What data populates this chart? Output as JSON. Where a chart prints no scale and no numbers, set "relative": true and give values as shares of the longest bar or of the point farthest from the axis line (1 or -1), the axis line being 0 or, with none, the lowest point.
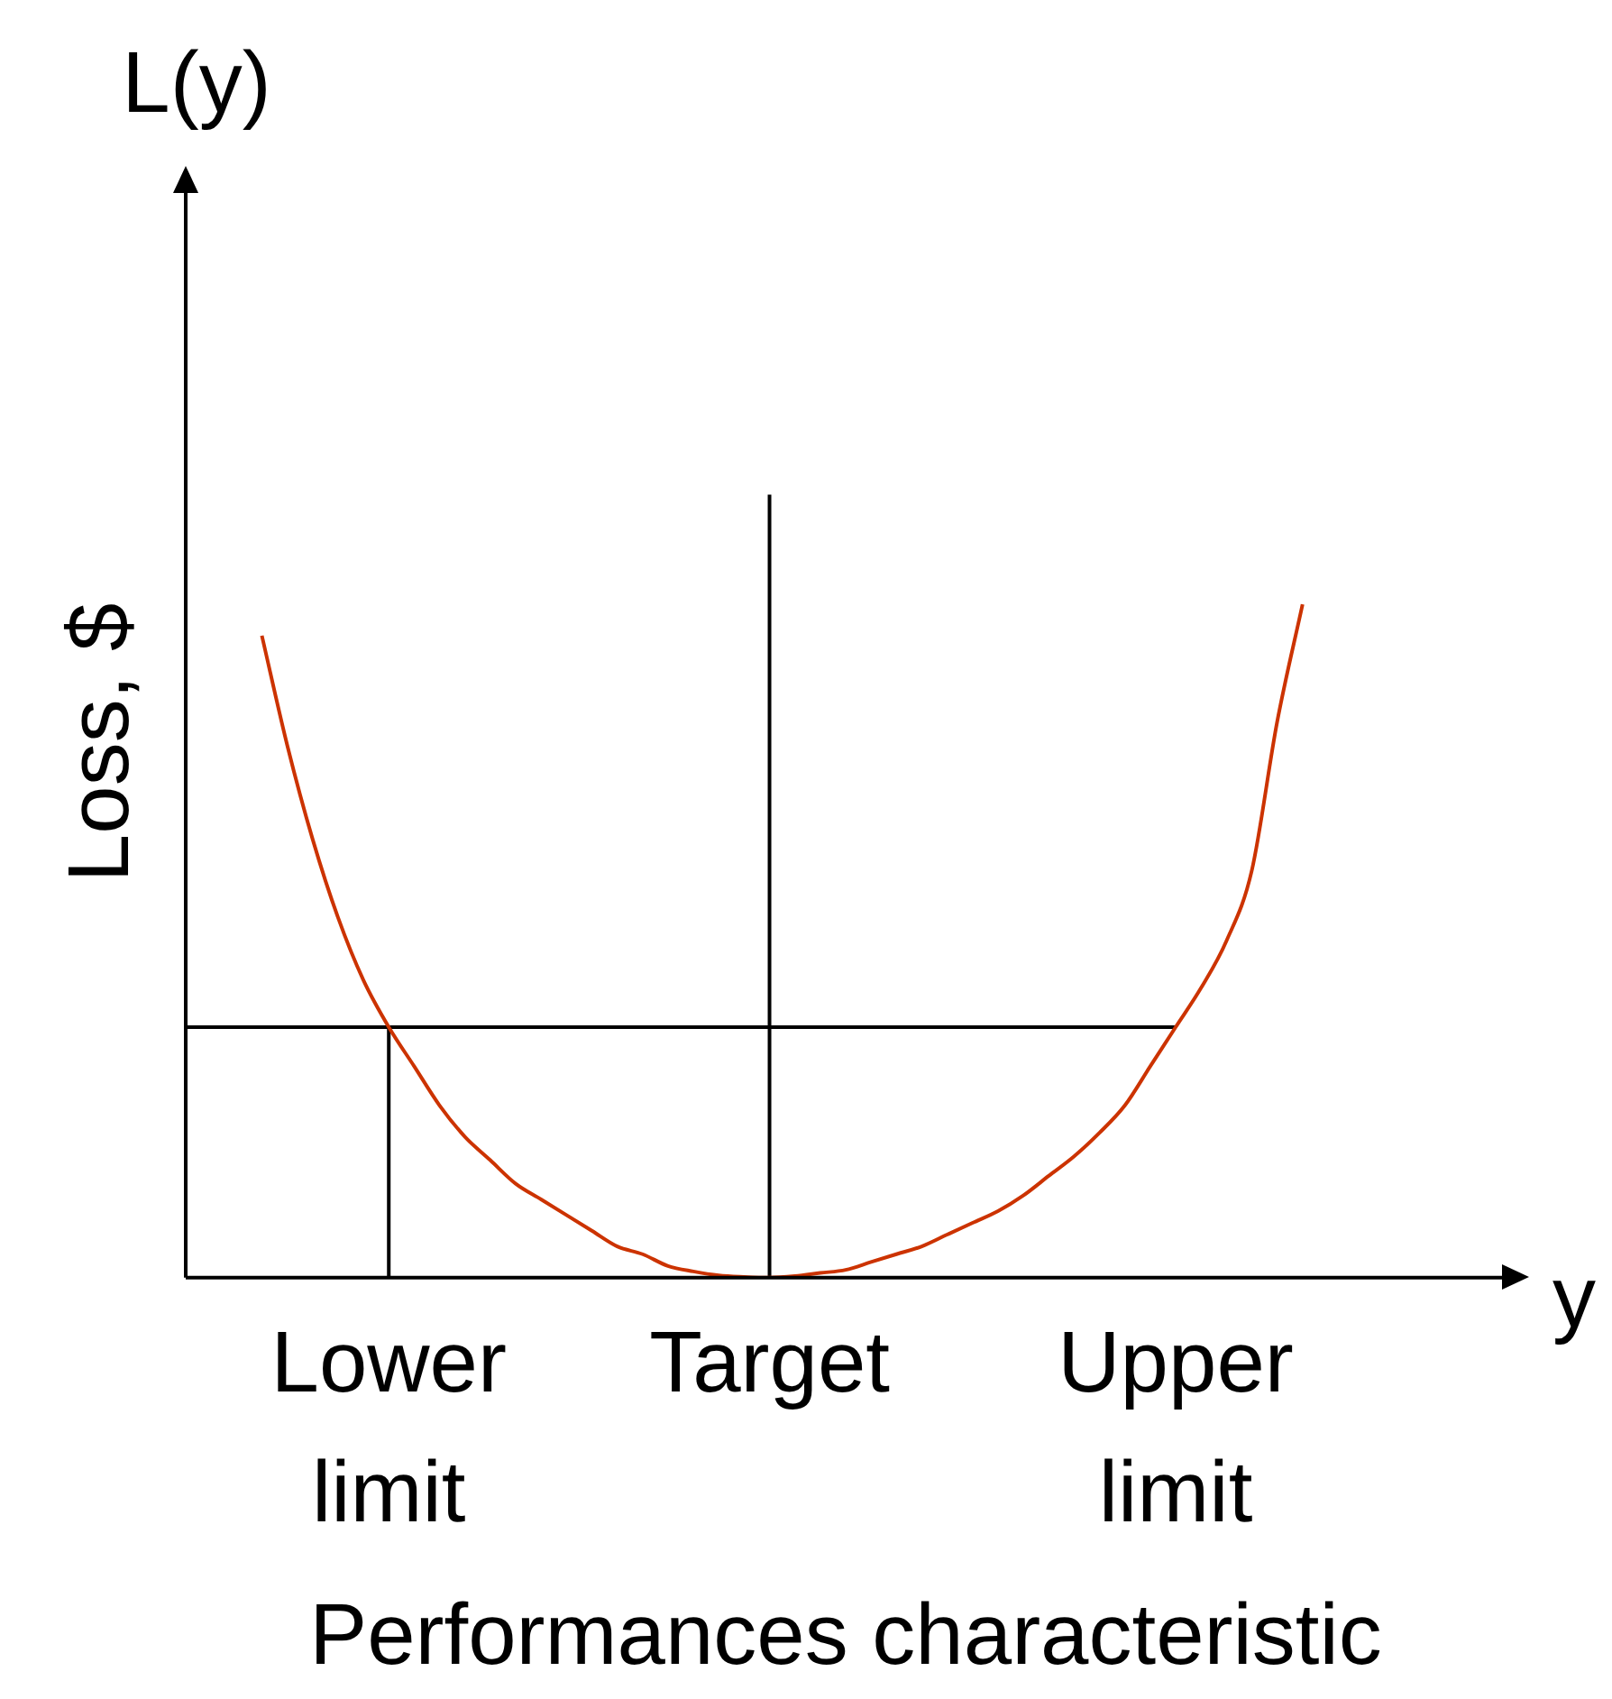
{
  "chart_data": {
    "type": "line",
    "title": "L(y)",
    "xlabel": "Performances characteristic",
    "ylabel": "Loss, $",
    "relative": true,
    "categories": [
      null,
      null,
      null,
      null,
      null,
      null,
      null,
      null,
      "Lower limit",
      null,
      null,
      null,
      null,
      null,
      null,
      null,
      null,
      null,
      null,
      null,
      null,
      null,
      null,
      "Target",
      null,
      null,
      null,
      null,
      null,
      null,
      null,
      null,
      null,
      null,
      null,
      null,
      null,
      null,
      null,
      "Upper limit",
      null,
      null,
      null,
      null,
      null,
      null,
      null,
      null,
      null,
      null,
      null,
      null,
      null
    ],
    "grid": false,
    "legend": false,
    "marker": "none",
    "line_style": "solid",
    "annotations": [
      "y"
    ],
    "series": [
      {
        "color": "#cc3300",
        "values": [
          null,
          null,
          null,
          0.82,
          0.68,
          0.56,
          0.46,
          0.38,
          0.32,
          0.27,
          0.22,
          0.18,
          0.15,
          0.12,
          0.1,
          0.08,
          0.06,
          0.04,
          0.03,
          0.015,
          0.008,
          0.003,
          0.001,
          0,
          0.002,
          0.006,
          0.01,
          0.02,
          0.03,
          0.04,
          0.055,
          0.07,
          0.085,
          0.105,
          0.13,
          0.155,
          0.185,
          0.22,
          0.27,
          0.32,
          0.37,
          0.43,
          0.52,
          0.71,
          0.86,
          null,
          null,
          null,
          null,
          null,
          null,
          null,
          null
        ]
      },
      {
        "color": "#000000",
        "x": [
          "Lower limit",
          "Lower limit"
        ],
        "values": [
          0,
          0.32
        ]
      },
      {
        "color": "#000000",
        "values": [
          0.32,
          0.32,
          0.32,
          0.32,
          0.32,
          0.32,
          0.32,
          0.32,
          0.32,
          0.32,
          0.32,
          0.32,
          0.32,
          0.32,
          0.32,
          0.32,
          0.32,
          0.32,
          0.32,
          0.32,
          0.32,
          0.32,
          0.32,
          0.32,
          0.32,
          0.32,
          0.32,
          0.32,
          0.32,
          0.32,
          0.32,
          0.32,
          0.32,
          0.32,
          0.32,
          0.32,
          0.32,
          0.32,
          0.32,
          0.32,
          null,
          null,
          null,
          null,
          null,
          null,
          null,
          null,
          null,
          null,
          null,
          null,
          null
        ]
      },
      {
        "color": "#000000",
        "x": [
          "Target",
          "Target"
        ],
        "values": [
          0,
          1
        ]
      }
    ]
  }
}
